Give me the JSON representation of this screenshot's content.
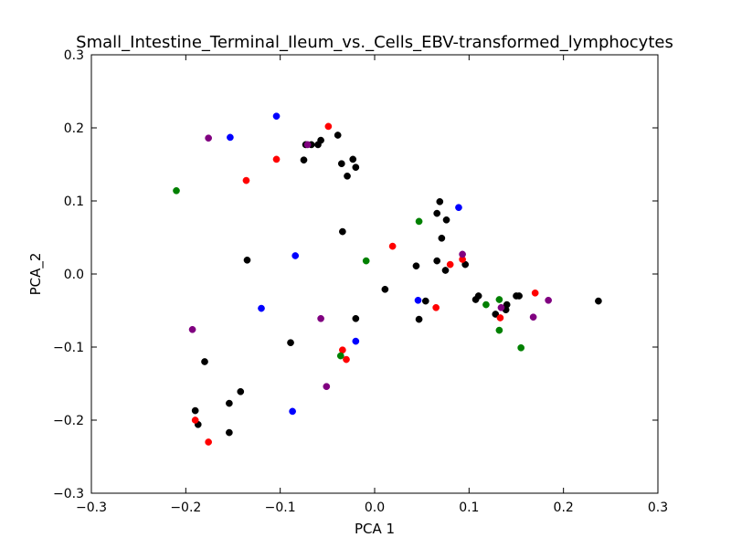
{
  "chart_data": {
    "type": "scatter",
    "title": "Small_Intestine_Terminal_Ileum_vs._Cells_EBV-transformed_lymphocytes",
    "xlabel": "PCA 1",
    "ylabel": "PCA_2",
    "xlim": [
      -0.3,
      0.3
    ],
    "ylim": [
      -0.3,
      0.3
    ],
    "xticks": [
      -0.3,
      -0.2,
      -0.1,
      0.0,
      0.1,
      0.2,
      0.3
    ],
    "yticks": [
      -0.3,
      -0.2,
      -0.1,
      0.0,
      0.1,
      0.2,
      0.3
    ],
    "xtick_labels": [
      "−0.3",
      "−0.2",
      "−0.1",
      "0.0",
      "0.1",
      "0.2",
      "0.3"
    ],
    "ytick_labels": [
      "−0.3",
      "−0.2",
      "−0.1",
      "0.0",
      "0.1",
      "0.2",
      "0.3"
    ],
    "grid": false,
    "legend": "none",
    "series": [
      {
        "color": "#000000",
        "points": [
          [
            -0.073,
            0.177
          ],
          [
            -0.067,
            0.177
          ],
          [
            -0.06,
            0.177
          ],
          [
            -0.057,
            0.183
          ],
          [
            -0.039,
            0.19
          ],
          [
            -0.075,
            0.156
          ],
          [
            -0.035,
            0.151
          ],
          [
            -0.023,
            0.157
          ],
          [
            -0.029,
            0.134
          ],
          [
            -0.02,
            0.146
          ],
          [
            -0.034,
            0.058
          ],
          [
            -0.135,
            0.019
          ],
          [
            0.069,
            0.099
          ],
          [
            0.066,
            0.083
          ],
          [
            0.076,
            0.074
          ],
          [
            0.071,
            0.049
          ],
          [
            0.066,
            0.018
          ],
          [
            0.075,
            0.005
          ],
          [
            0.096,
            0.013
          ],
          [
            0.044,
            0.011
          ],
          [
            0.011,
            -0.021
          ],
          [
            0.054,
            -0.037
          ],
          [
            0.047,
            -0.062
          ],
          [
            0.107,
            -0.035
          ],
          [
            0.11,
            -0.03
          ],
          [
            0.128,
            -0.055
          ],
          [
            0.139,
            -0.049
          ],
          [
            0.14,
            -0.042
          ],
          [
            0.15,
            -0.03
          ],
          [
            0.153,
            -0.03
          ],
          [
            0.237,
            -0.037
          ],
          [
            -0.02,
            -0.061
          ],
          [
            -0.089,
            -0.094
          ],
          [
            -0.18,
            -0.12
          ],
          [
            -0.142,
            -0.161
          ],
          [
            -0.154,
            -0.177
          ],
          [
            -0.19,
            -0.187
          ],
          [
            -0.187,
            -0.206
          ],
          [
            -0.154,
            -0.217
          ]
        ]
      },
      {
        "color": "#ff0000",
        "points": [
          [
            -0.049,
            0.202
          ],
          [
            -0.104,
            0.157
          ],
          [
            -0.136,
            0.128
          ],
          [
            0.019,
            0.038
          ],
          [
            0.08,
            0.013
          ],
          [
            0.093,
            0.02
          ],
          [
            0.065,
            -0.046
          ],
          [
            0.17,
            -0.026
          ],
          [
            0.133,
            -0.06
          ],
          [
            -0.034,
            -0.104
          ],
          [
            -0.03,
            -0.117
          ],
          [
            -0.19,
            -0.2
          ],
          [
            -0.176,
            -0.23
          ]
        ]
      },
      {
        "color": "#0000ff",
        "points": [
          [
            -0.104,
            0.216
          ],
          [
            -0.153,
            0.187
          ],
          [
            0.089,
            0.091
          ],
          [
            -0.084,
            0.025
          ],
          [
            -0.12,
            -0.047
          ],
          [
            0.046,
            -0.036
          ],
          [
            -0.02,
            -0.092
          ],
          [
            -0.087,
            -0.188
          ]
        ]
      },
      {
        "color": "#008000",
        "points": [
          [
            -0.21,
            0.114
          ],
          [
            0.047,
            0.072
          ],
          [
            -0.009,
            0.018
          ],
          [
            0.118,
            -0.042
          ],
          [
            0.132,
            -0.035
          ],
          [
            0.132,
            -0.077
          ],
          [
            0.155,
            -0.101
          ],
          [
            -0.036,
            -0.112
          ]
        ]
      },
      {
        "color": "#800080",
        "points": [
          [
            -0.176,
            0.186
          ],
          [
            -0.071,
            0.177
          ],
          [
            0.093,
            0.027
          ],
          [
            0.184,
            -0.036
          ],
          [
            0.168,
            -0.059
          ],
          [
            0.134,
            -0.046
          ],
          [
            -0.057,
            -0.061
          ],
          [
            -0.193,
            -0.076
          ],
          [
            -0.051,
            -0.154
          ]
        ]
      }
    ]
  }
}
